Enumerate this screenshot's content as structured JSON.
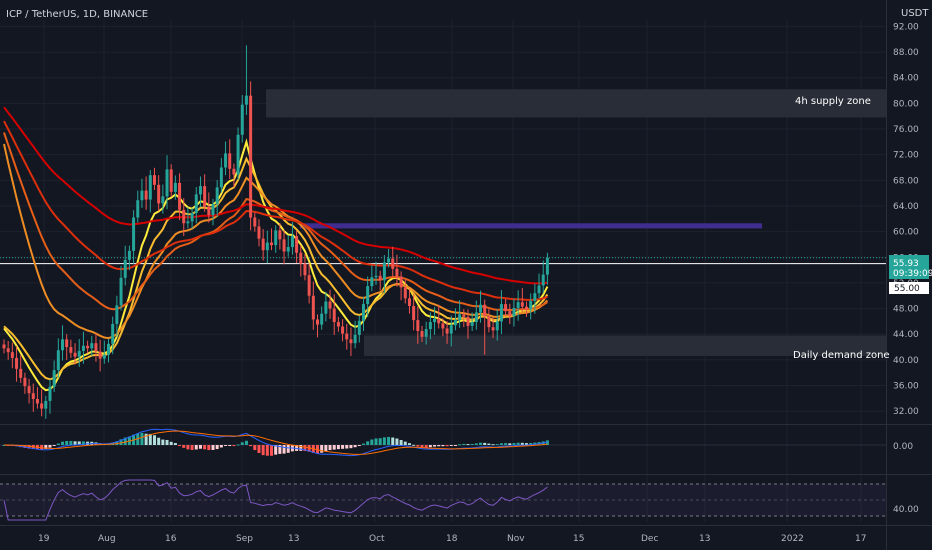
{
  "header": {
    "symbol_line": "ICP / TetherUS, 1D, BINANCE",
    "currency": "USDT"
  },
  "colors": {
    "background": "#131722",
    "up": "#26a69a",
    "down": "#ef5350",
    "price_badge": "#26a69a",
    "ribbon_fast": "#ffeb3b",
    "ribbon_slow": "#d50000",
    "supply_zone": "#2a2e39",
    "resistance_bar": "#3f2d8f",
    "macd_line": "#2962ff",
    "signal_line": "#ff6d00",
    "rsi_line": "#7e57c2"
  },
  "price_axis": {
    "ticks": [
      "92.00",
      "88.00",
      "84.00",
      "80.00",
      "76.00",
      "72.00",
      "68.00",
      "64.00",
      "60.00",
      "56.00",
      "52.00",
      "48.00",
      "44.00",
      "40.00",
      "36.00",
      "32.00"
    ],
    "last_price": "55.93",
    "countdown": "09:39:09",
    "level_label": "55.00"
  },
  "macd_axis": {
    "zero_label": "0.00"
  },
  "rsi_axis": {
    "label": "40.00"
  },
  "time_axis": {
    "labels": [
      "19",
      "Aug",
      "16",
      "Sep",
      "13",
      "Oct",
      "18",
      "Nov",
      "15",
      "Dec",
      "13",
      "2022",
      "17"
    ]
  },
  "annotations": {
    "supply_zone": "4h supply zone",
    "demand_zone": "Daily demand zone"
  },
  "chart_data": {
    "type": "candlestick",
    "title": "ICP / TetherUS, 1D, BINANCE",
    "ylim": [
      30,
      93
    ],
    "horizontal_line": 55,
    "zones": [
      {
        "name": "4h supply zone",
        "low": 77.8,
        "high": 82.2
      },
      {
        "name": "resistance",
        "low": 60.5,
        "high": 61.3
      },
      {
        "name": "Daily demand zone",
        "low": 40.6,
        "high": 43.8
      }
    ],
    "close_prices": [
      41.8,
      41.2,
      40.3,
      38.6,
      37.2,
      35.9,
      34.8,
      33.9,
      33.2,
      32.4,
      33.6,
      35.8,
      38.4,
      41.5,
      43.2,
      42.0,
      41.1,
      40.5,
      41.4,
      42.2,
      41.8,
      42.6,
      41.3,
      40.2,
      40.8,
      42.5,
      45.6,
      48.5,
      52.8,
      55.6,
      57.0,
      62.2,
      64.9,
      66.4,
      65.0,
      68.8,
      67.3,
      64.4,
      65.5,
      69.7,
      66.2,
      67.6,
      63.4,
      61.3,
      61.6,
      62.9,
      65.8,
      67.1,
      63.9,
      62.6,
      64.3,
      66.9,
      70.0,
      72.2,
      69.8,
      68.9,
      75.1,
      79.8,
      81.2,
      62.2,
      60.8,
      58.9,
      57.1,
      58.3,
      57.9,
      60.2,
      58.8,
      56.9,
      57.6,
      59.3,
      56.7,
      55.0,
      53.2,
      50.0,
      46.3,
      45.5,
      47.2,
      49.1,
      48.0,
      45.9,
      45.2,
      44.1,
      43.2,
      42.6,
      43.9,
      46.1,
      48.7,
      51.5,
      52.9,
      53.1,
      52.4,
      55.2,
      55.8,
      54.2,
      53.0,
      51.3,
      49.6,
      48.4,
      46.2,
      44.5,
      43.6,
      44.8,
      45.9,
      46.4,
      45.7,
      44.9,
      44.1,
      45.4,
      46.2,
      47.1,
      46.7,
      45.3,
      45.9,
      47.4,
      48.6,
      46.8,
      45.1,
      44.6,
      46.0,
      48.7,
      47.6,
      46.8,
      48.1,
      49.0,
      48.3,
      47.9,
      49.2,
      50.4,
      51.6,
      53.3,
      55.9
    ],
    "ribbon_lengths": [
      8,
      13,
      21,
      34,
      55,
      89
    ],
    "macd_histogram_note": "histogram derived from close prices",
    "rsi_note": "RSI line derived from close prices"
  }
}
